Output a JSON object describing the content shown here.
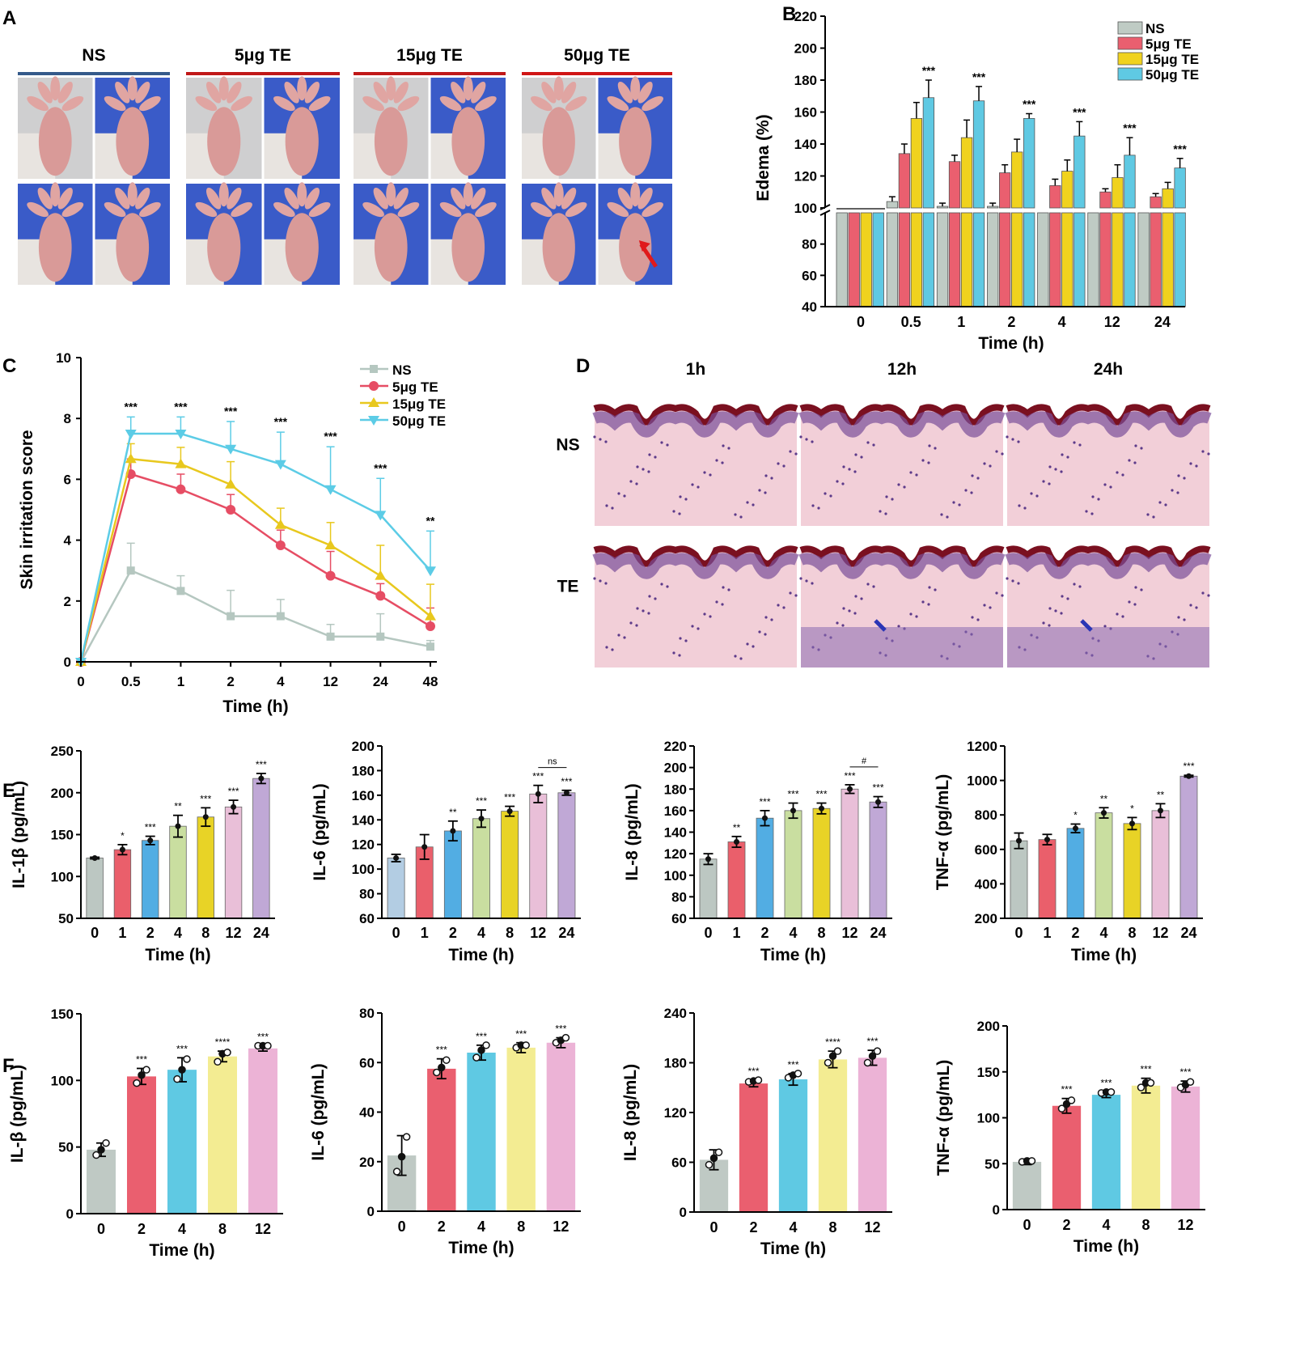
{
  "panels": {
    "A": "A",
    "B": "B",
    "C": "C",
    "D": "D",
    "E": "E",
    "F": "F"
  },
  "colors": {
    "ns": "#bfcbc4",
    "te5": "#ea5f6f",
    "te15": "#f0d21e",
    "te50": "#5fc9e3",
    "line_ns": "#b5c7c0",
    "line_te5": "#e64d64",
    "line_te15": "#e8c81e",
    "line_te50": "#5ccce6",
    "e_bars": [
      "#bcc7c2",
      "#ea5f6b",
      "#52ade3",
      "#c9dea0",
      "#e8d326",
      "#e9bfd8",
      "#c0a8d6"
    ],
    "e_il6_first": "#b3cde3",
    "f_bars": [
      "#bfc9c4",
      "#ea5f6f",
      "#5fc9e3",
      "#f3ec92",
      "#ecb3d6"
    ]
  },
  "panel_a": {
    "groups": [
      "NS",
      "5μg TE",
      "15μg TE",
      "50μg TE"
    ],
    "group_line_colors": [
      "#355a8a",
      "#c01818",
      "#c01818",
      "#d01515"
    ],
    "paw_image_count_per_group": 4
  },
  "panel_d": {
    "columns": [
      "1h",
      "12h",
      "24h"
    ],
    "rows": [
      "NS",
      "TE"
    ]
  },
  "chart_data": [
    {
      "id": "B",
      "type": "bar",
      "title": "",
      "xlabel": "Time (h)",
      "ylabel": "Edema (%)",
      "categories": [
        "0",
        "0.5",
        "1",
        "2",
        "4",
        "12",
        "24"
      ],
      "ylim": [
        40,
        220
      ],
      "axis_break": 100,
      "yticks_upper": [
        100,
        120,
        140,
        160,
        180,
        200,
        220
      ],
      "yticks_lower": [
        40,
        60,
        80
      ],
      "legend": [
        "NS",
        "5μg TE",
        "15μg TE",
        "50μg TE"
      ],
      "series": [
        {
          "name": "NS",
          "values": [
            100,
            104,
            101,
            101,
            100,
            100,
            100
          ],
          "errors": [
            0,
            3,
            2,
            2,
            1,
            0,
            0
          ]
        },
        {
          "name": "5μg TE",
          "values": [
            100,
            134,
            129,
            122,
            114,
            110,
            107
          ],
          "errors": [
            0,
            6,
            4,
            5,
            4,
            2,
            2
          ]
        },
        {
          "name": "15μg TE",
          "values": [
            100,
            156,
            144,
            135,
            123,
            119,
            112
          ],
          "errors": [
            0,
            10,
            11,
            8,
            7,
            8,
            4
          ]
        },
        {
          "name": "50μg TE",
          "values": [
            100,
            169,
            167,
            156,
            145,
            133,
            125
          ],
          "errors": [
            0,
            11,
            9,
            3,
            9,
            11,
            6
          ]
        }
      ],
      "annotations": [
        "",
        "***",
        "***",
        "***",
        "***",
        "***",
        "***"
      ]
    },
    {
      "id": "C",
      "type": "line",
      "xlabel": "Time (h)",
      "ylabel": "Skin irritation score",
      "x": [
        "0",
        "0.5",
        "1",
        "2",
        "4",
        "12",
        "24",
        "48"
      ],
      "ylim": [
        0,
        10
      ],
      "yticks": [
        0,
        2,
        4,
        6,
        8,
        10
      ],
      "legend": [
        "NS",
        "5μg TE",
        "15μg TE",
        "50μg TE"
      ],
      "series": [
        {
          "name": "NS",
          "values": [
            0,
            3.0,
            2.33,
            1.5,
            1.5,
            0.83,
            0.83,
            0.5
          ],
          "errors": [
            0,
            0.9,
            0.5,
            0.85,
            0.55,
            0.4,
            0.75,
            0.2
          ]
        },
        {
          "name": "5μg TE",
          "values": [
            0,
            6.17,
            5.67,
            5.0,
            3.83,
            2.83,
            2.17,
            1.17
          ],
          "errors": [
            0,
            0.5,
            0.5,
            0.5,
            0.5,
            0.8,
            0.4,
            0.6
          ]
        },
        {
          "name": "15μg TE",
          "values": [
            0,
            6.67,
            6.5,
            5.83,
            4.5,
            3.83,
            2.83,
            1.5
          ],
          "errors": [
            0,
            0.5,
            0.55,
            0.75,
            0.55,
            0.75,
            1.0,
            1.05
          ]
        },
        {
          "name": "50μg TE",
          "values": [
            0,
            7.5,
            7.5,
            7.0,
            6.5,
            5.67,
            4.83,
            3.0
          ],
          "errors": [
            0,
            0.55,
            0.55,
            0.9,
            1.05,
            1.4,
            1.2,
            1.3
          ]
        }
      ],
      "annotations": [
        "",
        "***",
        "***",
        "***",
        "***",
        "***",
        "***",
        "**"
      ]
    },
    {
      "id": "E1",
      "type": "bar",
      "xlabel": "Time (h)",
      "ylabel": "IL-1β (pg/mL)",
      "categories": [
        "0",
        "1",
        "2",
        "4",
        "8",
        "12",
        "24"
      ],
      "values": [
        122,
        132,
        143,
        160,
        171,
        183,
        217
      ],
      "errors": [
        1,
        6,
        5,
        13,
        11,
        8,
        6
      ],
      "ylim": [
        50,
        250
      ],
      "yticks": [
        50,
        100,
        150,
        200,
        250
      ],
      "annotations": [
        "",
        "*",
        "***",
        "**",
        "***",
        "***",
        "***"
      ]
    },
    {
      "id": "E2",
      "type": "bar",
      "xlabel": "Time (h)",
      "ylabel": "IL-6 (pg/mL)",
      "categories": [
        "0",
        "1",
        "2",
        "4",
        "8",
        "12",
        "24"
      ],
      "values": [
        109,
        118,
        131,
        141,
        147,
        161,
        162
      ],
      "errors": [
        3,
        10,
        8,
        7,
        4,
        7,
        2
      ],
      "ylim": [
        60,
        200
      ],
      "yticks": [
        60,
        80,
        100,
        120,
        140,
        160,
        180,
        200
      ],
      "annotations": [
        "",
        "",
        "**",
        "***",
        "***",
        "***",
        "***"
      ],
      "bracket": {
        "from": 5,
        "to": 6,
        "label": "ns"
      }
    },
    {
      "id": "E3",
      "type": "bar",
      "xlabel": "Time (h)",
      "ylabel": "IL-8 (pg/mL)",
      "categories": [
        "0",
        "1",
        "2",
        "4",
        "8",
        "12",
        "24"
      ],
      "values": [
        115,
        131,
        153,
        160,
        162,
        180,
        168
      ],
      "errors": [
        5,
        5,
        7,
        7,
        5,
        4,
        5
      ],
      "ylim": [
        60,
        220
      ],
      "yticks": [
        60,
        80,
        100,
        120,
        140,
        160,
        180,
        200,
        220
      ],
      "annotations": [
        "",
        "**",
        "***",
        "***",
        "***",
        "***",
        "***"
      ],
      "bracket": {
        "from": 5,
        "to": 6,
        "label": "#"
      }
    },
    {
      "id": "E4",
      "type": "bar",
      "xlabel": "Time (h)",
      "ylabel": "TNF-α (pg/mL)",
      "categories": [
        "0",
        "1",
        "2",
        "4",
        "8",
        "12",
        "24"
      ],
      "values": [
        650,
        657,
        722,
        812,
        750,
        825,
        1025
      ],
      "errors": [
        45,
        30,
        25,
        30,
        35,
        40,
        5
      ],
      "ylim": [
        200,
        1200
      ],
      "yticks": [
        200,
        400,
        600,
        800,
        1000,
        1200
      ],
      "annotations": [
        "",
        "",
        "*",
        "**",
        "*",
        "**",
        "***"
      ]
    },
    {
      "id": "F1",
      "type": "bar",
      "xlabel": "Time (h)",
      "ylabel": "IL-β (pg/mL)",
      "categories": [
        "0",
        "2",
        "4",
        "8",
        "12"
      ],
      "values": [
        48,
        103,
        108,
        118,
        124
      ],
      "errors": [
        5,
        6,
        9,
        4,
        2
      ],
      "points": [
        [
          44,
          48,
          53
        ],
        [
          98,
          104,
          108
        ],
        [
          101,
          108,
          116
        ],
        [
          114,
          120,
          121
        ],
        [
          126,
          126,
          126
        ]
      ],
      "ylim": [
        0,
        150
      ],
      "yticks": [
        0,
        50,
        100,
        150
      ],
      "annotations": [
        "",
        "***",
        "***",
        "****",
        "***"
      ]
    },
    {
      "id": "F2",
      "type": "bar",
      "xlabel": "Time (h)",
      "ylabel": "IL-6 (pg/mL)",
      "categories": [
        "0",
        "2",
        "4",
        "8",
        "12"
      ],
      "values": [
        22.5,
        57.5,
        64,
        66,
        68
      ],
      "errors": [
        8,
        4,
        3,
        2,
        2
      ],
      "points": [
        [
          16,
          22,
          30
        ],
        [
          56,
          58,
          61
        ],
        [
          62,
          65,
          67
        ],
        [
          66,
          67,
          67
        ],
        [
          68,
          69,
          70
        ]
      ],
      "ylim": [
        0,
        80
      ],
      "yticks": [
        0,
        20,
        40,
        60,
        80
      ],
      "annotations": [
        "",
        "***",
        "***",
        "***",
        "***"
      ]
    },
    {
      "id": "F3",
      "type": "bar",
      "xlabel": "Time (h)",
      "ylabel": "IL-8 (pg/mL)",
      "categories": [
        "0",
        "2",
        "4",
        "8",
        "12"
      ],
      "values": [
        63,
        155,
        160,
        184,
        186
      ],
      "errors": [
        12,
        4,
        7,
        10,
        9
      ],
      "points": [
        [
          57,
          65,
          72
        ],
        [
          157,
          158,
          159
        ],
        [
          162,
          165,
          167
        ],
        [
          180,
          188,
          194
        ],
        [
          180,
          188,
          194
        ]
      ],
      "ylim": [
        0,
        240
      ],
      "yticks": [
        0,
        60,
        120,
        180,
        240
      ],
      "annotations": [
        "",
        "***",
        "***",
        "****",
        "***"
      ]
    },
    {
      "id": "F4",
      "type": "bar",
      "xlabel": "Time (h)",
      "ylabel": "TNF-α (pg/mL)",
      "categories": [
        "0",
        "2",
        "4",
        "8",
        "12"
      ],
      "values": [
        52,
        113,
        125,
        135,
        134
      ],
      "errors": [
        3,
        8,
        3,
        8,
        6
      ],
      "points": [
        [
          52,
          53,
          53
        ],
        [
          110,
          115,
          119
        ],
        [
          127,
          128,
          128
        ],
        [
          133,
          138,
          138
        ],
        [
          133,
          136,
          139
        ]
      ],
      "ylim": [
        0,
        200
      ],
      "yticks": [
        0,
        50,
        100,
        150,
        200
      ],
      "annotations": [
        "",
        "***",
        "***",
        "***",
        "***"
      ]
    }
  ]
}
